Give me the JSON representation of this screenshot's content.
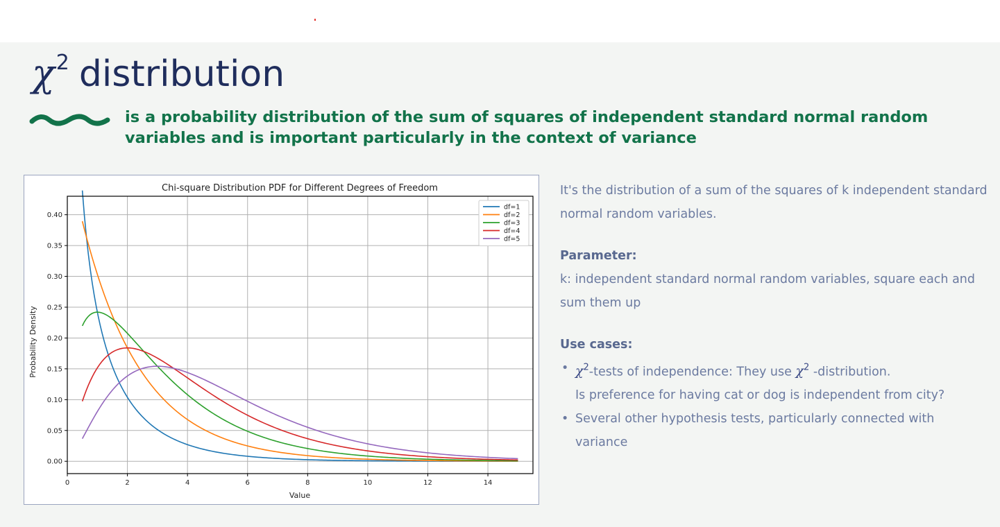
{
  "slide": {
    "title_symbol": "χ",
    "title_exponent": "2",
    "title_text": "distribution",
    "subtitle": "is a probability distribution of the sum of squares of independent standard normal random variables and is important particularly in the context of variance",
    "accent_color": "#12734a",
    "title_color": "#1f2d5c"
  },
  "text_panel": {
    "intro": "It's the distribution of a sum of the squares of k independent standard normal random variables.",
    "parameter_heading": "Parameter:",
    "parameter_text": "k: independent standard normal random variables, square each and sum them up",
    "use_cases_heading": "Use cases:",
    "use_case_1_symbol": "χ",
    "use_case_1_exponent": "2",
    "use_case_1_a": "-tests of independence: They use",
    "use_case_1_symbol2": "χ",
    "use_case_1_exponent2": "2",
    "use_case_1_b": "-distribution.",
    "use_case_1_line2": "Is preference for having cat or dog is independent from city?",
    "use_case_2": "Several other hypothesis tests, particularly connected with variance"
  },
  "chart_data": {
    "type": "line",
    "title": "Chi-square Distribution PDF for Different Degrees of Freedom",
    "xlabel": "Value",
    "ylabel": "Probability Density",
    "xlim": [
      0,
      15.5
    ],
    "ylim": [
      -0.02,
      0.43
    ],
    "x_range": [
      0.5,
      15
    ],
    "xticks": [
      0,
      2,
      4,
      6,
      8,
      10,
      12,
      14
    ],
    "yticks": [
      0.0,
      0.05,
      0.1,
      0.15,
      0.2,
      0.25,
      0.3,
      0.35,
      0.4
    ],
    "grid": true,
    "legend_position": "top-right",
    "series": [
      {
        "name": "df=1",
        "df": 1,
        "color": "#1f77b4"
      },
      {
        "name": "df=2",
        "df": 2,
        "color": "#ff7f0e"
      },
      {
        "name": "df=3",
        "df": 3,
        "color": "#2ca02c"
      },
      {
        "name": "df=4",
        "df": 4,
        "color": "#d62728"
      },
      {
        "name": "df=5",
        "df": 5,
        "color": "#9467bd"
      }
    ]
  }
}
